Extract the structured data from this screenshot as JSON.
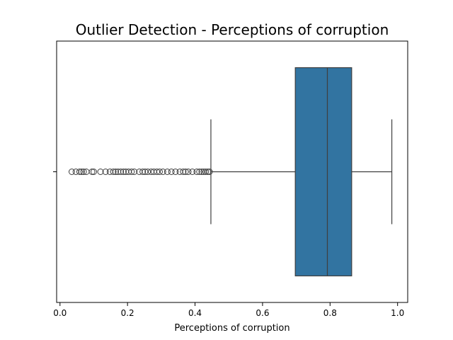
{
  "chart_data": {
    "type": "boxplot",
    "orientation": "horizontal",
    "title": "Outlier Detection - Perceptions of corruption",
    "xlabel": "Perceptions of corruption",
    "ylabel": "",
    "xlim": [
      -0.01,
      1.03
    ],
    "xticks": [
      0.0,
      0.2,
      0.4,
      0.6,
      0.8,
      1.0
    ],
    "xtick_labels": [
      "0.0",
      "0.2",
      "0.4",
      "0.6",
      "0.8",
      "1.0"
    ],
    "grid": false,
    "box": {
      "whisker_low": 0.447,
      "q1": 0.697,
      "median": 0.792,
      "q3": 0.864,
      "whisker_high": 0.983
    },
    "outliers": [
      0.035,
      0.047,
      0.058,
      0.064,
      0.07,
      0.078,
      0.095,
      0.1,
      0.12,
      0.135,
      0.148,
      0.158,
      0.165,
      0.172,
      0.18,
      0.188,
      0.195,
      0.203,
      0.212,
      0.22,
      0.235,
      0.245,
      0.252,
      0.26,
      0.27,
      0.278,
      0.287,
      0.295,
      0.305,
      0.318,
      0.33,
      0.342,
      0.355,
      0.365,
      0.372,
      0.38,
      0.392,
      0.405,
      0.413,
      0.42,
      0.426,
      0.432,
      0.438,
      0.443
    ],
    "colors": {
      "box_fill": "#3274a1",
      "line": "#3f3f3f"
    }
  }
}
